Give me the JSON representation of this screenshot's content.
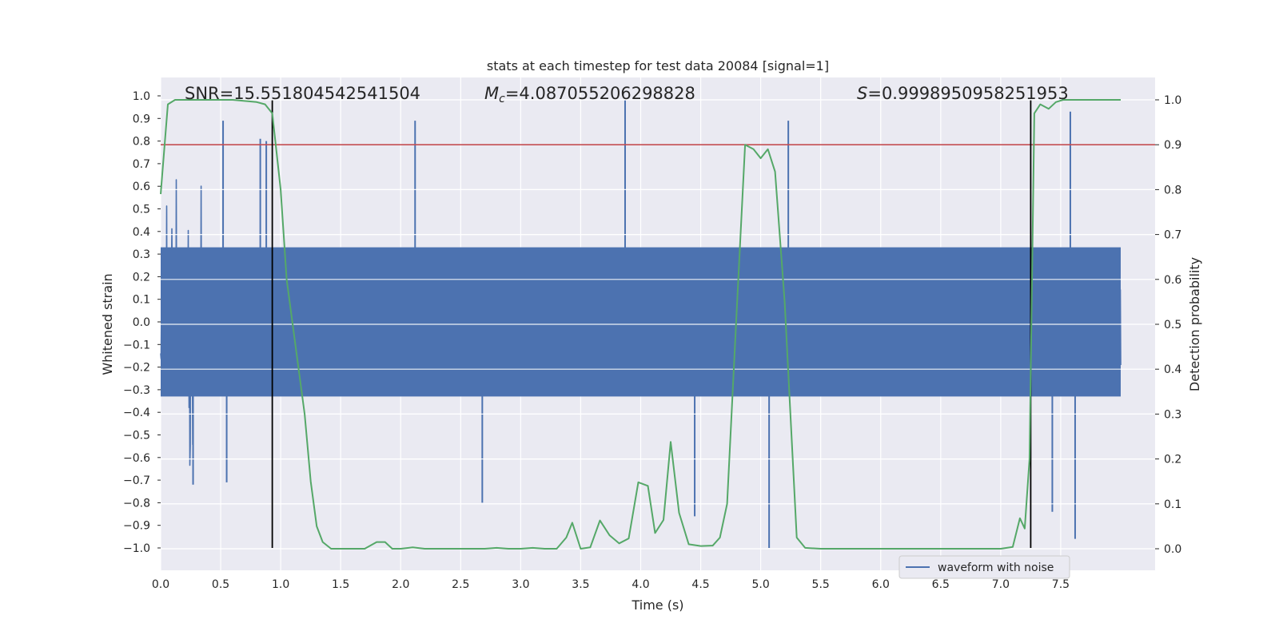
{
  "chart_data": {
    "type": "line",
    "title": "stats at each timestep for test data 20084 [signal=1]",
    "xlabel": "Time (s)",
    "ylabel": "Whitened strain",
    "y2label": "Detection probability",
    "xlim": [
      0.0,
      8.0
    ],
    "ylim": [
      -1.1,
      1.1
    ],
    "y2lim": [
      -0.045,
      1.055
    ],
    "xticks": [
      "0.0",
      "0.5",
      "1.0",
      "1.5",
      "2.0",
      "2.5",
      "3.0",
      "3.5",
      "4.0",
      "4.5",
      "5.0",
      "5.5",
      "6.0",
      "6.5",
      "7.0",
      "7.5"
    ],
    "yticks": [
      "1.0",
      "0.9",
      "0.8",
      "0.7",
      "0.6",
      "0.5",
      "0.4",
      "0.3",
      "0.2",
      "0.1",
      "0.0",
      "-0.1",
      "-0.2",
      "-0.3",
      "-0.4",
      "-0.5",
      "-0.6",
      "-0.7",
      "-0.8",
      "-0.9",
      "-1.0"
    ],
    "y2ticks": [
      "1.0",
      "0.9",
      "0.8",
      "0.7",
      "0.6",
      "0.5",
      "0.4",
      "0.3",
      "0.2",
      "0.1",
      "0.0"
    ],
    "annotations": {
      "snr": "SNR=15.551804542541504",
      "mc_symbol": "M",
      "mc_sub": "c",
      "mc_value": "=4.087055206298828",
      "s_symbol": "S",
      "s_value": "=0.9998950958251953"
    },
    "legend": {
      "label": "waveform with noise",
      "position": "lower-right"
    },
    "threshold": {
      "axis": "y2",
      "value": 0.9,
      "color": "#c44e52"
    },
    "vlines": [
      {
        "x": 0.93,
        "ymin": -1.0,
        "ymax": 0.98,
        "color": "#000000"
      },
      {
        "x": 7.25,
        "ymin": -1.0,
        "ymax": 0.98,
        "color": "#000000"
      }
    ],
    "series": [
      {
        "name": "waveform with noise",
        "axis": "y",
        "color": "#4c72b0",
        "description": "whitened strain noise, typical envelope about +/-0.4 with spikes up to +/-1.0",
        "spikes": [
          {
            "x": 0.52,
            "y": 0.89
          },
          {
            "x": 0.83,
            "y": 0.81
          },
          {
            "x": 0.88,
            "y": 0.8
          },
          {
            "x": 2.12,
            "y": 0.89
          },
          {
            "x": 3.87,
            "y": 0.98
          },
          {
            "x": 5.23,
            "y": 0.89
          },
          {
            "x": 7.58,
            "y": 0.93
          },
          {
            "x": 0.27,
            "y": -0.72
          },
          {
            "x": 0.55,
            "y": -0.71
          },
          {
            "x": 2.68,
            "y": -0.8
          },
          {
            "x": 4.45,
            "y": -0.86
          },
          {
            "x": 5.07,
            "y": -1.0
          },
          {
            "x": 7.62,
            "y": -0.96
          },
          {
            "x": 7.43,
            "y": -0.84
          }
        ]
      },
      {
        "name": "detection probability",
        "axis": "y2",
        "color": "#55a868",
        "x": [
          0.0,
          0.06,
          0.12,
          0.2,
          0.4,
          0.6,
          0.8,
          0.87,
          0.93,
          1.0,
          1.05,
          1.1,
          1.2,
          1.25,
          1.3,
          1.35,
          1.42,
          1.5,
          1.6,
          1.7,
          1.8,
          1.87,
          1.93,
          2.0,
          2.1,
          2.2,
          2.3,
          2.5,
          2.7,
          2.8,
          2.9,
          3.0,
          3.1,
          3.2,
          3.3,
          3.38,
          3.43,
          3.5,
          3.58,
          3.66,
          3.74,
          3.82,
          3.9,
          3.98,
          4.06,
          4.12,
          4.19,
          4.25,
          4.32,
          4.4,
          4.5,
          4.6,
          4.66,
          4.72,
          4.8,
          4.87,
          4.94,
          5.0,
          5.06,
          5.12,
          5.2,
          5.3,
          5.37,
          5.5,
          5.8,
          6.0,
          6.5,
          7.0,
          7.1,
          7.16,
          7.2,
          7.24,
          7.28,
          7.33,
          7.4,
          7.46,
          7.52,
          7.6,
          7.7,
          7.8,
          8.0
        ],
        "values": [
          0.79,
          0.99,
          1.0,
          1.0,
          1.0,
          1.0,
          0.995,
          0.99,
          0.97,
          0.8,
          0.6,
          0.5,
          0.3,
          0.15,
          0.05,
          0.015,
          0.0,
          0.0,
          0.0,
          0.0,
          0.015,
          0.015,
          0.0,
          0.0,
          0.003,
          0.0,
          0.0,
          0.0,
          0.0,
          0.002,
          0.0,
          0.0,
          0.002,
          0.0,
          0.0,
          0.025,
          0.058,
          0.0,
          0.003,
          0.063,
          0.03,
          0.012,
          0.023,
          0.148,
          0.14,
          0.035,
          0.064,
          0.238,
          0.08,
          0.01,
          0.006,
          0.007,
          0.025,
          0.1,
          0.53,
          0.9,
          0.89,
          0.87,
          0.89,
          0.84,
          0.55,
          0.025,
          0.002,
          0.0,
          0.0,
          0.0,
          0.0,
          0.0,
          0.004,
          0.068,
          0.045,
          0.2,
          0.97,
          0.99,
          0.98,
          0.995,
          1.0,
          1.0,
          1.0,
          1.0,
          1.0
        ]
      }
    ]
  }
}
